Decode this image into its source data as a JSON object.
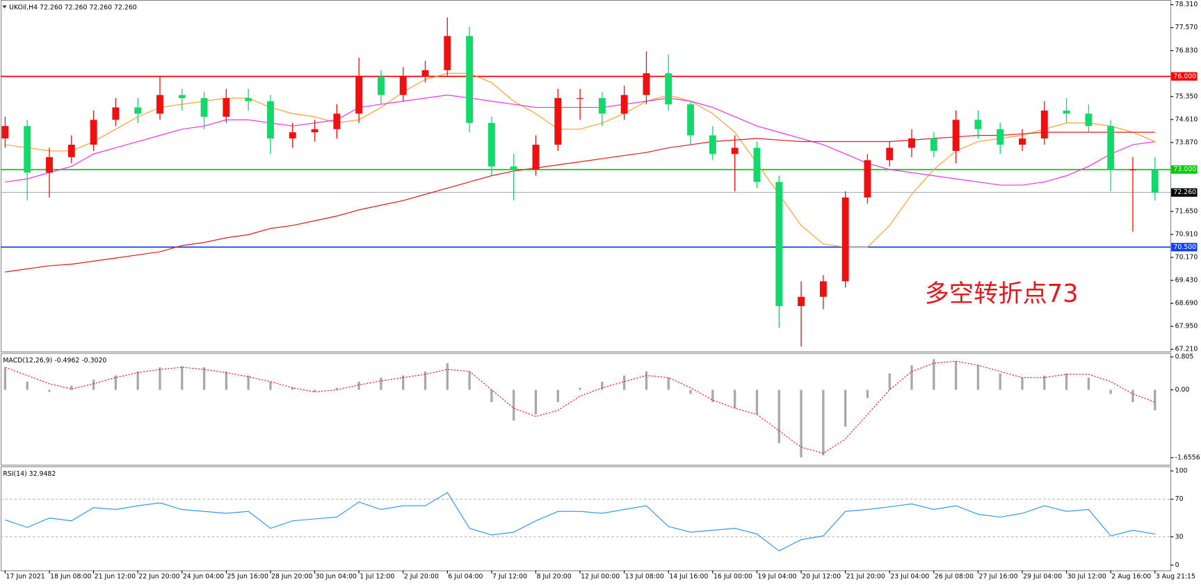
{
  "chart_data": [
    {
      "type": "candlestick",
      "title": "UKOil,H4  72.260 72.260 72.260 72.260",
      "annotation": "多空转折点73",
      "annotation_color": "#e8161c",
      "xlim": [
        -0.2,
        52.7
      ],
      "ylim": [
        67.14,
        78.46
      ],
      "yticks": [
        {
          "value": 78.31,
          "label": "78.310"
        },
        {
          "value": 77.57,
          "label": "77.570"
        },
        {
          "value": 76.83,
          "label": "76.830"
        },
        {
          "value": 75.35,
          "label": "75.350"
        },
        {
          "value": 74.61,
          "label": "74.610"
        },
        {
          "value": 73.87,
          "label": "73.870"
        },
        {
          "value": 71.65,
          "label": "71.650"
        },
        {
          "value": 70.91,
          "label": "70.910"
        },
        {
          "value": 70.17,
          "label": "70.170"
        },
        {
          "value": 69.43,
          "label": "69.430"
        },
        {
          "value": 68.69,
          "label": "68.690"
        },
        {
          "value": 67.95,
          "label": "67.950"
        },
        {
          "value": 67.21,
          "label": "67.210"
        }
      ],
      "up_color": "#f01010",
      "down_color": "#14d96a",
      "open": [
        74.0,
        74.4,
        72.9,
        73.4,
        73.8,
        74.6,
        75.0,
        74.8,
        75.4,
        75.3,
        74.7,
        75.3,
        75.2,
        74.0,
        74.2,
        74.3,
        74.8,
        76.0,
        75.4,
        76.0,
        76.2,
        77.3,
        74.5,
        73.1,
        73.0,
        73.8,
        75.3,
        75.3,
        74.8,
        75.4,
        76.1,
        75.1,
        74.1,
        73.5,
        73.7,
        72.6,
        68.6,
        68.9,
        69.4,
        72.1,
        73.3,
        73.7,
        74.0,
        73.6,
        74.6,
        74.3,
        73.8,
        74.0,
        74.9,
        74.8,
        74.4,
        73.0,
        73.0
      ],
      "high": [
        74.7,
        74.6,
        73.7,
        74.1,
        74.9,
        75.3,
        75.3,
        76.0,
        75.6,
        75.5,
        75.6,
        75.6,
        75.4,
        74.5,
        74.6,
        75.1,
        76.6,
        76.2,
        76.3,
        76.5,
        77.9,
        77.6,
        74.7,
        73.5,
        74.1,
        75.6,
        75.6,
        75.5,
        75.7,
        76.8,
        76.7,
        75.2,
        74.4,
        74.1,
        73.9,
        72.8,
        69.4,
        69.6,
        72.3,
        73.5,
        73.9,
        74.3,
        74.2,
        74.9,
        74.9,
        74.5,
        74.3,
        75.2,
        75.3,
        75.1,
        74.6,
        73.4,
        73.4
      ],
      "low": [
        73.7,
        72.0,
        72.1,
        73.2,
        73.6,
        74.4,
        74.5,
        74.6,
        74.9,
        74.3,
        74.5,
        74.9,
        73.5,
        73.7,
        73.9,
        74.0,
        74.5,
        75.1,
        75.2,
        75.8,
        76.0,
        74.2,
        72.8,
        72.0,
        72.8,
        73.6,
        74.6,
        74.4,
        74.6,
        75.1,
        74.9,
        73.8,
        73.3,
        72.3,
        72.4,
        67.9,
        67.3,
        68.5,
        69.2,
        71.9,
        73.1,
        73.4,
        73.4,
        73.2,
        74.0,
        73.5,
        73.6,
        73.8,
        74.5,
        74.2,
        72.3,
        71.0,
        72.0
      ],
      "close": [
        74.4,
        72.9,
        73.4,
        73.8,
        74.6,
        75.0,
        74.8,
        75.4,
        75.3,
        74.7,
        75.3,
        75.2,
        74.0,
        74.2,
        74.3,
        74.8,
        76.0,
        75.4,
        76.0,
        76.2,
        77.3,
        74.5,
        73.1,
        73.0,
        73.8,
        75.3,
        75.3,
        74.8,
        75.4,
        76.1,
        75.1,
        74.1,
        73.5,
        73.7,
        72.6,
        68.6,
        68.9,
        69.4,
        72.1,
        73.3,
        73.7,
        74.0,
        73.6,
        74.6,
        74.3,
        73.8,
        74.0,
        74.9,
        74.8,
        74.4,
        73.0,
        73.0,
        72.26
      ],
      "lines": [
        {
          "color": "#ffa030",
          "values": [
            73.8,
            73.7,
            73.6,
            73.6,
            73.9,
            74.3,
            74.7,
            75.0,
            75.1,
            75.2,
            75.3,
            75.3,
            75.0,
            74.8,
            74.7,
            74.5,
            74.6,
            75.0,
            75.5,
            75.9,
            76.1,
            76.1,
            75.8,
            75.2,
            74.8,
            74.3,
            74.3,
            74.5,
            74.8,
            75.2,
            75.4,
            75.2,
            74.8,
            74.2,
            73.2,
            72.2,
            71.2,
            70.6,
            70.5,
            70.5,
            71.2,
            72.2,
            73.0,
            73.6,
            73.9,
            74.0,
            74.1,
            74.3,
            74.5,
            74.5,
            74.4,
            74.2,
            73.9
          ]
        },
        {
          "color": "#f030f0",
          "values": [
            72.6,
            72.7,
            72.9,
            73.1,
            73.5,
            73.7,
            73.9,
            74.1,
            74.3,
            74.4,
            74.6,
            74.6,
            74.5,
            74.4,
            74.5,
            74.6,
            75.0,
            75.1,
            75.2,
            75.3,
            75.4,
            75.3,
            75.2,
            75.1,
            75.0,
            75.0,
            75.0,
            75.0,
            75.1,
            75.2,
            75.3,
            75.2,
            75.0,
            74.7,
            74.4,
            74.2,
            74.0,
            73.8,
            73.5,
            73.2,
            73.0,
            72.9,
            72.8,
            72.7,
            72.6,
            72.5,
            72.5,
            72.6,
            72.8,
            73.1,
            73.5,
            73.8,
            73.9
          ]
        },
        {
          "color": "#e81818",
          "values": [
            69.7,
            69.8,
            69.9,
            69.95,
            70.05,
            70.15,
            70.25,
            70.35,
            70.55,
            70.65,
            70.8,
            70.9,
            71.1,
            71.2,
            71.35,
            71.5,
            71.7,
            71.85,
            72.0,
            72.2,
            72.4,
            72.6,
            72.8,
            72.95,
            73.05,
            73.15,
            73.25,
            73.35,
            73.45,
            73.55,
            73.7,
            73.8,
            73.9,
            73.95,
            74.0,
            73.95,
            73.9,
            73.9,
            73.9,
            73.9,
            73.9,
            73.95,
            74.0,
            74.05,
            74.1,
            74.1,
            74.15,
            74.2,
            74.2,
            74.2,
            74.2,
            74.2,
            74.2
          ]
        }
      ],
      "levels": [
        {
          "value": 76,
          "label": "76.000",
          "color": "#ff0000",
          "label_background": "#ff0000"
        },
        {
          "value": 73,
          "label": "73.000",
          "color": "#00cc00",
          "label_background": "#00cc00"
        },
        {
          "value": 72.26,
          "label": "72.260",
          "color": "#8899aa",
          "label_background": "#000000"
        },
        {
          "value": 70.5,
          "label": "70.500",
          "color": "#1040ff",
          "label_background": "#1040ff"
        }
      ]
    },
    {
      "type": "macd",
      "title": "MACD(12,26,9) -0.4962 -0.3020",
      "xlim": [
        -0.2,
        52.7
      ],
      "ylim": [
        -1.83,
        0.9
      ],
      "yticks": [
        0.805,
        {
          "value": 0,
          "label": "0.00"
        },
        -1.6556
      ],
      "histogram_color": "#a8a8a8",
      "signal_color": "#ff0000",
      "histogram": [
        0.55,
        0.2,
        -0.05,
        0.1,
        0.25,
        0.35,
        0.45,
        0.55,
        0.58,
        0.55,
        0.45,
        0.35,
        0.2,
        0.05,
        -0.05,
        0.05,
        0.2,
        0.3,
        0.35,
        0.45,
        0.65,
        0.45,
        -0.3,
        -0.75,
        -0.6,
        -0.3,
        0.05,
        0.2,
        0.35,
        0.45,
        0.3,
        -0.1,
        -0.3,
        -0.45,
        -0.6,
        -1.3,
        -1.65,
        -1.6,
        -0.9,
        -0.2,
        0.4,
        0.6,
        0.75,
        0.7,
        0.6,
        0.4,
        0.3,
        0.35,
        0.4,
        0.3,
        -0.1,
        -0.3,
        -0.5
      ],
      "signal": [
        0.55,
        0.35,
        0.15,
        0.02,
        0.15,
        0.3,
        0.42,
        0.5,
        0.55,
        0.5,
        0.42,
        0.32,
        0.2,
        0.05,
        -0.05,
        0.0,
        0.12,
        0.22,
        0.3,
        0.38,
        0.5,
        0.45,
        0.0,
        -0.45,
        -0.65,
        -0.5,
        -0.15,
        0.05,
        0.2,
        0.35,
        0.3,
        0.05,
        -0.25,
        -0.45,
        -0.6,
        -1.0,
        -1.4,
        -1.55,
        -1.2,
        -0.6,
        0.0,
        0.45,
        0.65,
        0.7,
        0.6,
        0.45,
        0.3,
        0.3,
        0.38,
        0.38,
        0.2,
        -0.1,
        -0.3
      ]
    },
    {
      "type": "rsi",
      "title": "RSI(14) 32.9482",
      "xlim": [
        -0.2,
        52.7
      ],
      "ylim": [
        -5.7,
        104.9
      ],
      "yticks": [
        100,
        70,
        30,
        0
      ],
      "levels": [
        70,
        30
      ],
      "color": "#1e90ff",
      "values": [
        48,
        40,
        50,
        47,
        61,
        59,
        63,
        66,
        59,
        57,
        55,
        57,
        39,
        47,
        49,
        51,
        67,
        59,
        63,
        63,
        77,
        39,
        32,
        35,
        47,
        57,
        57,
        55,
        59,
        63,
        41,
        35,
        37,
        39,
        33,
        15,
        27,
        31,
        57,
        59,
        62,
        65,
        59,
        63,
        54,
        51,
        55,
        63,
        57,
        59,
        31,
        37,
        32.9482
      ],
      "xticks": [
        {
          "value": 0,
          "label": "17 Jun 2021"
        },
        {
          "value": 2,
          "label": "18 Jun 08:00"
        },
        {
          "value": 4,
          "label": "21 Jun 12:00"
        },
        {
          "value": 6,
          "label": "22 Jun 20:00"
        },
        {
          "value": 8,
          "label": "24 Jun 04:00"
        },
        {
          "value": 10,
          "label": "25 Jun 16:00"
        },
        {
          "value": 12,
          "label": "28 Jun 20:00"
        },
        {
          "value": 14,
          "label": "30 Jun 04:00"
        },
        {
          "value": 16,
          "label": "1 Jul 12:00"
        },
        {
          "value": 18,
          "label": "2 Jul 20:00"
        },
        {
          "value": 20,
          "label": "6 Jul 04:00"
        },
        {
          "value": 22,
          "label": "7 Jul 12:00"
        },
        {
          "value": 24,
          "label": "8 Jul 20:00"
        },
        {
          "value": 26,
          "label": "12 Jul 00:00"
        },
        {
          "value": 28,
          "label": "13 Jul 08:00"
        },
        {
          "value": 30,
          "label": "14 Jul 16:00"
        },
        {
          "value": 32,
          "label": "16 Jul 00:00"
        },
        {
          "value": 34,
          "label": "19 Jul 04:00"
        },
        {
          "value": 36,
          "label": "20 Jul 12:00"
        },
        {
          "value": 38,
          "label": "21 Jul 20:00"
        },
        {
          "value": 40,
          "label": "23 Jul 04:00"
        },
        {
          "value": 42,
          "label": "26 Jul 08:00"
        },
        {
          "value": 44,
          "label": "27 Jul 16:00"
        },
        {
          "value": 46,
          "label": "29 Jul 04:00"
        },
        {
          "value": 48,
          "label": "30 Jul 12:00"
        },
        {
          "value": 50,
          "label": "2 Aug 16:00"
        },
        {
          "value": 52,
          "label": "3 Aug 21:15"
        }
      ]
    }
  ]
}
